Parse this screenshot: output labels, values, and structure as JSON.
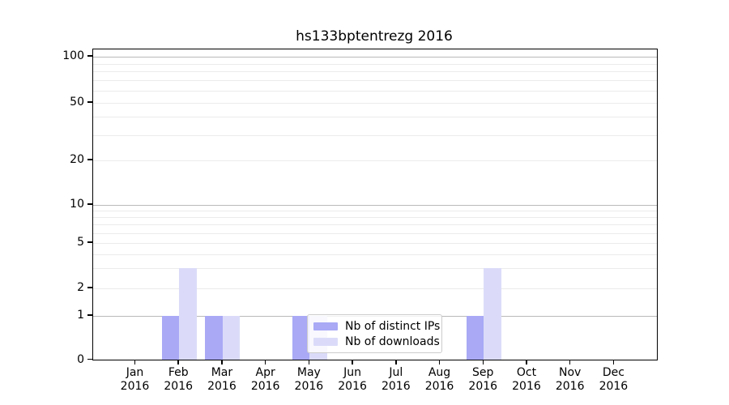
{
  "chart_data": {
    "type": "bar",
    "title": "hs133bptentrezg 2016",
    "categories": [
      "Jan",
      "Feb",
      "Mar",
      "Apr",
      "May",
      "Jun",
      "Jul",
      "Aug",
      "Sep",
      "Oct",
      "Nov",
      "Dec"
    ],
    "x_tick_year": "2016",
    "series": [
      {
        "name": "Nb of distinct IPs",
        "color": "#a9a9f6",
        "values": [
          0,
          1,
          1,
          0,
          1,
          0,
          0,
          0,
          1,
          0,
          0,
          0
        ]
      },
      {
        "name": "Nb of downloads",
        "color": "#dbdbf9",
        "values": [
          0,
          3,
          1,
          0,
          1,
          0,
          0,
          0,
          3,
          0,
          0,
          0
        ]
      }
    ],
    "yscale": "log-above-1-linear-below-1",
    "ytick_values": [
      0,
      1,
      2,
      5,
      10,
      20,
      50,
      100
    ],
    "ytick_labels": [
      "0",
      "1",
      "2",
      "5",
      "10",
      "20",
      "50",
      "100"
    ],
    "minor_ytick_values": [
      3,
      4,
      6,
      7,
      8,
      9,
      30,
      40,
      60,
      70,
      80,
      90
    ],
    "decade_ytick_values": [
      1,
      10,
      100
    ],
    "ylim": [
      0,
      112
    ],
    "grid": true,
    "legend_position": "lower center-right inside plot",
    "colors": {
      "background": "#ffffff",
      "spine": "#000000",
      "grid_decade": "#b9b9b9",
      "grid_minor": "#ebebeb",
      "legend_border": "#cccccc",
      "legend_background": "rgba(255,255,255,0.8)",
      "text": "#000000"
    }
  }
}
